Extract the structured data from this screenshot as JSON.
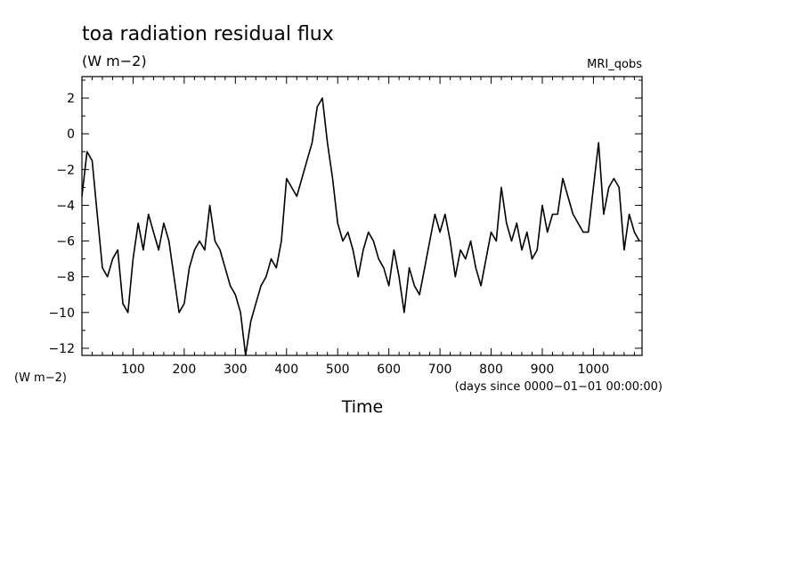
{
  "chart_data": {
    "type": "line",
    "title": "toa radiation residual flux",
    "units_label": "(W m−2)",
    "model_label": "MRI_qobs",
    "yaxis_units": "(W m−2)",
    "time_units": "(days since 0000−01−01 00:00:00)",
    "xlabel": "Time",
    "xlim": [
      0,
      1095
    ],
    "ylim": [
      -12.4,
      3.2
    ],
    "x_ticks": [
      100,
      200,
      300,
      400,
      500,
      600,
      700,
      800,
      900,
      1000
    ],
    "y_ticks": [
      2,
      0,
      -2,
      -4,
      -6,
      -8,
      -10,
      -12
    ],
    "y_tick_labels": [
      "2",
      "0",
      "−2",
      "−4",
      "−6",
      "−8",
      "−10",
      "−12"
    ],
    "grid": false,
    "legend": "none",
    "line_color": "#000000",
    "series": [
      {
        "x": [
          0,
          10,
          20,
          30,
          40,
          50,
          60,
          70,
          80,
          90,
          100,
          110,
          120,
          130,
          140,
          150,
          160,
          170,
          180,
          190,
          200,
          210,
          220,
          230,
          240,
          250,
          260,
          270,
          280,
          290,
          300,
          310,
          320,
          330,
          340,
          350,
          360,
          370,
          380,
          390,
          400,
          410,
          420,
          430,
          440,
          450,
          460,
          470,
          480,
          490,
          500,
          510,
          520,
          530,
          540,
          550,
          560,
          570,
          580,
          590,
          600,
          610,
          620,
          630,
          640,
          650,
          660,
          670,
          680,
          690,
          700,
          710,
          720,
          730,
          740,
          750,
          760,
          770,
          780,
          790,
          800,
          810,
          820,
          830,
          840,
          850,
          860,
          870,
          880,
          890,
          900,
          910,
          920,
          930,
          940,
          950,
          960,
          970,
          980,
          990,
          1000,
          1010,
          1020,
          1030,
          1040,
          1050,
          1060,
          1070,
          1080,
          1090
        ],
        "values": [
          -3.5,
          -1.0,
          -1.5,
          -4.5,
          -7.5,
          -8.0,
          -7.0,
          -6.5,
          -9.5,
          -10.0,
          -7.0,
          -5.0,
          -6.5,
          -4.5,
          -5.5,
          -6.5,
          -5.0,
          -6.0,
          -8.0,
          -10.0,
          -9.5,
          -7.5,
          -6.5,
          -6.0,
          -6.5,
          -4.0,
          -6.0,
          -6.5,
          -7.5,
          -8.5,
          -9.0,
          -10.0,
          -12.4,
          -10.5,
          -9.5,
          -8.5,
          -8.0,
          -7.0,
          -7.5,
          -6.0,
          -2.5,
          -3.0,
          -3.5,
          -2.5,
          -1.5,
          -0.5,
          1.5,
          2.0,
          -0.5,
          -2.5,
          -5.0,
          -6.0,
          -5.5,
          -6.5,
          -8.0,
          -6.5,
          -5.5,
          -6.0,
          -7.0,
          -7.5,
          -8.5,
          -6.5,
          -8.0,
          -10.0,
          -7.5,
          -8.5,
          -9.0,
          -7.5,
          -6.0,
          -4.5,
          -5.5,
          -4.5,
          -6.0,
          -8.0,
          -6.5,
          -7.0,
          -6.0,
          -7.5,
          -8.5,
          -7.0,
          -5.5,
          -6.0,
          -3.0,
          -5.0,
          -6.0,
          -5.0,
          -6.5,
          -5.5,
          -7.0,
          -6.5,
          -4.0,
          -5.5,
          -4.5,
          -4.5,
          -2.5,
          -3.5,
          -4.5,
          -5.0,
          -5.5,
          -5.5,
          -3.0,
          -0.5,
          -4.5,
          -3.0,
          -2.5,
          -3.0,
          -6.5,
          -4.5,
          -5.5,
          -6.0
        ]
      }
    ]
  }
}
